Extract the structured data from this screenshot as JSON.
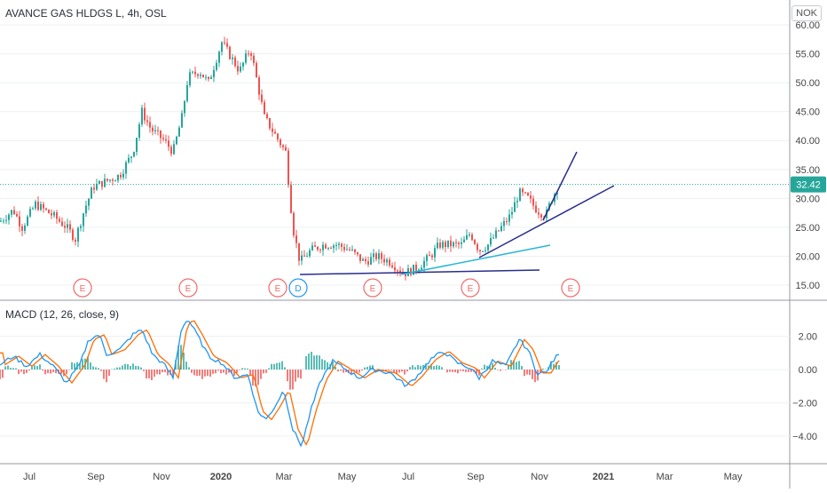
{
  "chart_title": "AVANCE GAS HLDGS L, 4h, OSL",
  "currency": "NOK",
  "current_price": "32.42",
  "colors": {
    "up": "#26a69a",
    "down": "#ef5350",
    "macd": "#2196f3",
    "signal": "#ff6d00",
    "trend1": "#2a2e8c",
    "trend2": "#29b6d6",
    "event": "#f06a6a"
  },
  "price_axis": {
    "ticks": [
      "60.00",
      "55.00",
      "50.00",
      "45.00",
      "40.00",
      "35.00",
      "30.00",
      "25.00",
      "20.00",
      "15.00"
    ]
  },
  "macd": {
    "label": "MACD (12, 26, close, 9)",
    "ticks": [
      "2.00",
      "0.00",
      "−2.00",
      "−4.00"
    ]
  },
  "time_axis": {
    "labels": [
      "Jul",
      "Sep",
      "Nov",
      "2020",
      "Mar",
      "May",
      "Jul",
      "Sep",
      "Nov",
      "2021",
      "Mar",
      "May"
    ]
  },
  "events": [
    "E",
    "E",
    "E",
    "D",
    "E",
    "E",
    "E"
  ],
  "chart_data": {
    "type": "line",
    "title": "AVANCE GAS HLDGS L, 4h, OSL",
    "series": [
      {
        "name": "",
        "x": [
          "2019-06",
          "2019-07",
          "2019-08",
          "2019-09",
          "2019-10",
          "2019-11",
          "2019-12",
          "2020-01",
          "2020-02",
          "2020-03",
          "2020-04",
          "2020-05",
          "2020-06",
          "2020-07",
          "2020-08",
          "2020-09",
          "2020-10",
          "2020-11"
        ],
        "values": [
          26,
          27,
          24,
          32,
          45,
          39,
          52,
          55,
          49,
          18,
          21,
          20,
          17,
          19,
          22,
          26,
          30,
          32.42
        ]
      }
    ],
    "ylim": [
      13,
      62
    ]
  }
}
